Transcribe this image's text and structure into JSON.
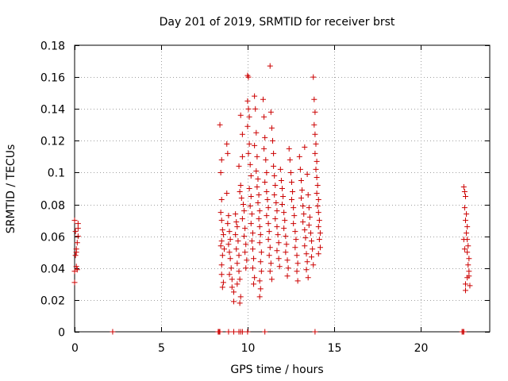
{
  "chart_data": {
    "type": "scatter",
    "title": "Day 201 of 2019, SRMTID for receiver brst",
    "xlabel": "GPS time / hours",
    "ylabel": "SRMTID / TECUs",
    "xlim": [
      0,
      24
    ],
    "ylim": [
      0,
      0.18
    ],
    "xticks": [
      0,
      5,
      10,
      15,
      20
    ],
    "xtick_labels": [
      "0",
      "5",
      "10",
      "15",
      "20"
    ],
    "yticks": [
      0,
      0.02,
      0.04,
      0.06,
      0.08,
      0.1,
      0.12,
      0.14,
      0.16,
      0.18
    ],
    "ytick_labels": [
      "0",
      "0.02",
      "0.04",
      "0.06",
      "0.08",
      "0.1",
      "0.12",
      "0.14",
      "0.16",
      "0.18"
    ],
    "grid": true,
    "marker": "+",
    "marker_color": "#cc0000",
    "series": [
      {
        "name": "brst",
        "points": [
          [
            0.0,
            0.07
          ],
          [
            0.05,
            0.063
          ],
          [
            0.1,
            0.052
          ],
          [
            0.1,
            0.041
          ],
          [
            0.15,
            0.039
          ],
          [
            0.0,
            0.031
          ],
          [
            0.2,
            0.068
          ],
          [
            0.2,
            0.06
          ],
          [
            0.15,
            0.056
          ],
          [
            0.05,
            0.048
          ],
          [
            0.2,
            0.065
          ],
          [
            0.0,
            0.038
          ],
          [
            0.1,
            0.05
          ],
          [
            2.2,
            0.0
          ],
          [
            8.3,
            0.0
          ],
          [
            8.35,
            0.0
          ],
          [
            8.4,
            0.0
          ],
          [
            8.9,
            0.0
          ],
          [
            9.2,
            0.0
          ],
          [
            9.5,
            0.0
          ],
          [
            9.6,
            0.0
          ],
          [
            9.7,
            0.0
          ],
          [
            10.0,
            0.0
          ],
          [
            11.0,
            0.0
          ],
          [
            13.9,
            0.0
          ],
          [
            22.4,
            0.0
          ],
          [
            22.45,
            0.0
          ],
          [
            22.5,
            0.0
          ],
          [
            8.4,
            0.13
          ],
          [
            8.45,
            0.1
          ],
          [
            8.5,
            0.108
          ],
          [
            8.5,
            0.083
          ],
          [
            8.45,
            0.075
          ],
          [
            8.5,
            0.07
          ],
          [
            8.55,
            0.064
          ],
          [
            8.5,
            0.057
          ],
          [
            8.45,
            0.054
          ],
          [
            8.55,
            0.048
          ],
          [
            8.5,
            0.042
          ],
          [
            8.5,
            0.036
          ],
          [
            8.6,
            0.031
          ],
          [
            8.55,
            0.028
          ],
          [
            8.6,
            0.061
          ],
          [
            8.65,
            0.052
          ],
          [
            8.8,
            0.118
          ],
          [
            8.85,
            0.112
          ],
          [
            8.8,
            0.087
          ],
          [
            8.9,
            0.073
          ],
          [
            8.85,
            0.068
          ],
          [
            8.95,
            0.063
          ],
          [
            9.0,
            0.058
          ],
          [
            8.9,
            0.055
          ],
          [
            8.95,
            0.05
          ],
          [
            9.0,
            0.046
          ],
          [
            9.05,
            0.04
          ],
          [
            8.95,
            0.036
          ],
          [
            9.1,
            0.033
          ],
          [
            9.1,
            0.028
          ],
          [
            9.2,
            0.025
          ],
          [
            9.2,
            0.019
          ],
          [
            9.3,
            0.074
          ],
          [
            9.35,
            0.069
          ],
          [
            9.4,
            0.066
          ],
          [
            9.3,
            0.061
          ],
          [
            9.45,
            0.057
          ],
          [
            9.35,
            0.052
          ],
          [
            9.5,
            0.048
          ],
          [
            9.4,
            0.043
          ],
          [
            9.5,
            0.038
          ],
          [
            9.55,
            0.033
          ],
          [
            9.4,
            0.03
          ],
          [
            9.6,
            0.022
          ],
          [
            9.55,
            0.018
          ],
          [
            9.5,
            0.104
          ],
          [
            9.6,
            0.092
          ],
          [
            9.55,
            0.088
          ],
          [
            9.65,
            0.084
          ],
          [
            9.6,
            0.136
          ],
          [
            9.7,
            0.124
          ],
          [
            9.7,
            0.11
          ],
          [
            9.75,
            0.08
          ],
          [
            9.8,
            0.076
          ],
          [
            9.7,
            0.071
          ],
          [
            9.85,
            0.065
          ],
          [
            9.8,
            0.06
          ],
          [
            9.9,
            0.055
          ],
          [
            9.85,
            0.05
          ],
          [
            9.95,
            0.045
          ],
          [
            9.9,
            0.04
          ],
          [
            10.0,
            0.161
          ],
          [
            10.05,
            0.16
          ],
          [
            10.0,
            0.145
          ],
          [
            10.05,
            0.14
          ],
          [
            10.1,
            0.135
          ],
          [
            10.0,
            0.129
          ],
          [
            10.1,
            0.118
          ],
          [
            10.05,
            0.112
          ],
          [
            10.15,
            0.105
          ],
          [
            10.2,
            0.098
          ],
          [
            10.1,
            0.09
          ],
          [
            10.2,
            0.085
          ],
          [
            10.15,
            0.079
          ],
          [
            10.25,
            0.074
          ],
          [
            10.2,
            0.068
          ],
          [
            10.3,
            0.062
          ],
          [
            10.25,
            0.057
          ],
          [
            10.3,
            0.052
          ],
          [
            10.35,
            0.046
          ],
          [
            10.3,
            0.04
          ],
          [
            10.4,
            0.034
          ],
          [
            10.35,
            0.03
          ],
          [
            10.4,
            0.148
          ],
          [
            10.45,
            0.14
          ],
          [
            10.5,
            0.125
          ],
          [
            10.4,
            0.117
          ],
          [
            10.55,
            0.11
          ],
          [
            10.5,
            0.101
          ],
          [
            10.6,
            0.096
          ],
          [
            10.55,
            0.091
          ],
          [
            10.65,
            0.086
          ],
          [
            10.6,
            0.081
          ],
          [
            10.7,
            0.076
          ],
          [
            10.65,
            0.071
          ],
          [
            10.7,
            0.066
          ],
          [
            10.75,
            0.061
          ],
          [
            10.7,
            0.056
          ],
          [
            10.8,
            0.05
          ],
          [
            10.75,
            0.044
          ],
          [
            10.8,
            0.038
          ],
          [
            10.7,
            0.032
          ],
          [
            10.75,
            0.027
          ],
          [
            10.7,
            0.022
          ],
          [
            10.9,
            0.146
          ],
          [
            10.95,
            0.135
          ],
          [
            11.0,
            0.122
          ],
          [
            10.95,
            0.115
          ],
          [
            11.05,
            0.108
          ],
          [
            11.1,
            0.1
          ],
          [
            11.0,
            0.094
          ],
          [
            11.1,
            0.088
          ],
          [
            11.15,
            0.083
          ],
          [
            11.2,
            0.078
          ],
          [
            11.1,
            0.073
          ],
          [
            11.2,
            0.068
          ],
          [
            11.25,
            0.063
          ],
          [
            11.2,
            0.058
          ],
          [
            11.3,
            0.053
          ],
          [
            11.25,
            0.048
          ],
          [
            11.35,
            0.043
          ],
          [
            11.3,
            0.038
          ],
          [
            11.4,
            0.033
          ],
          [
            11.3,
            0.167
          ],
          [
            11.35,
            0.138
          ],
          [
            11.4,
            0.128
          ],
          [
            11.45,
            0.12
          ],
          [
            11.5,
            0.112
          ],
          [
            11.5,
            0.104
          ],
          [
            11.55,
            0.098
          ],
          [
            11.6,
            0.092
          ],
          [
            11.55,
            0.086
          ],
          [
            11.65,
            0.081
          ],
          [
            11.7,
            0.076
          ],
          [
            11.6,
            0.071
          ],
          [
            11.7,
            0.066
          ],
          [
            11.75,
            0.061
          ],
          [
            11.8,
            0.056
          ],
          [
            11.7,
            0.051
          ],
          [
            11.8,
            0.046
          ],
          [
            11.85,
            0.041
          ],
          [
            11.9,
            0.102
          ],
          [
            11.95,
            0.095
          ],
          [
            12.0,
            0.09
          ],
          [
            12.05,
            0.085
          ],
          [
            12.0,
            0.08
          ],
          [
            12.1,
            0.075
          ],
          [
            12.15,
            0.07
          ],
          [
            12.1,
            0.065
          ],
          [
            12.2,
            0.06
          ],
          [
            12.25,
            0.055
          ],
          [
            12.2,
            0.05
          ],
          [
            12.3,
            0.045
          ],
          [
            12.35,
            0.04
          ],
          [
            12.3,
            0.035
          ],
          [
            12.4,
            0.115
          ],
          [
            12.45,
            0.108
          ],
          [
            12.5,
            0.1
          ],
          [
            12.55,
            0.094
          ],
          [
            12.6,
            0.088
          ],
          [
            12.55,
            0.083
          ],
          [
            12.65,
            0.078
          ],
          [
            12.7,
            0.073
          ],
          [
            12.65,
            0.068
          ],
          [
            12.75,
            0.063
          ],
          [
            12.8,
            0.058
          ],
          [
            12.75,
            0.053
          ],
          [
            12.85,
            0.048
          ],
          [
            12.9,
            0.043
          ],
          [
            12.85,
            0.038
          ],
          [
            12.9,
            0.032
          ],
          [
            13.0,
            0.11
          ],
          [
            13.05,
            0.102
          ],
          [
            13.1,
            0.095
          ],
          [
            13.15,
            0.089
          ],
          [
            13.1,
            0.084
          ],
          [
            13.2,
            0.079
          ],
          [
            13.25,
            0.074
          ],
          [
            13.2,
            0.069
          ],
          [
            13.3,
            0.064
          ],
          [
            13.35,
            0.059
          ],
          [
            13.3,
            0.054
          ],
          [
            13.4,
            0.049
          ],
          [
            13.45,
            0.044
          ],
          [
            13.4,
            0.039
          ],
          [
            13.5,
            0.034
          ],
          [
            13.3,
            0.116
          ],
          [
            13.45,
            0.099
          ],
          [
            13.5,
            0.086
          ],
          [
            13.55,
            0.078
          ],
          [
            13.6,
            0.072
          ],
          [
            13.55,
            0.067
          ],
          [
            13.65,
            0.062
          ],
          [
            13.7,
            0.057
          ],
          [
            13.75,
            0.052
          ],
          [
            13.7,
            0.047
          ],
          [
            13.8,
            0.042
          ],
          [
            13.8,
            0.16
          ],
          [
            13.85,
            0.146
          ],
          [
            13.9,
            0.138
          ],
          [
            13.85,
            0.13
          ],
          [
            13.9,
            0.124
          ],
          [
            13.95,
            0.118
          ],
          [
            13.9,
            0.112
          ],
          [
            14.0,
            0.107
          ],
          [
            13.95,
            0.102
          ],
          [
            14.0,
            0.097
          ],
          [
            14.05,
            0.092
          ],
          [
            14.0,
            0.087
          ],
          [
            14.1,
            0.083
          ],
          [
            14.05,
            0.079
          ],
          [
            14.1,
            0.075
          ],
          [
            14.15,
            0.07
          ],
          [
            14.1,
            0.066
          ],
          [
            14.2,
            0.062
          ],
          [
            14.15,
            0.058
          ],
          [
            14.2,
            0.053
          ],
          [
            14.1,
            0.049
          ],
          [
            22.5,
            0.091
          ],
          [
            22.55,
            0.088
          ],
          [
            22.6,
            0.085
          ],
          [
            22.55,
            0.078
          ],
          [
            22.65,
            0.074
          ],
          [
            22.6,
            0.07
          ],
          [
            22.7,
            0.066
          ],
          [
            22.65,
            0.062
          ],
          [
            22.7,
            0.058
          ],
          [
            22.75,
            0.054
          ],
          [
            22.7,
            0.05
          ],
          [
            22.8,
            0.046
          ],
          [
            22.75,
            0.042
          ],
          [
            22.8,
            0.038
          ],
          [
            22.7,
            0.034
          ],
          [
            22.6,
            0.03
          ],
          [
            22.6,
            0.026
          ],
          [
            22.85,
            0.029
          ],
          [
            22.8,
            0.035
          ],
          [
            22.5,
            0.058
          ],
          [
            22.55,
            0.052
          ]
        ]
      }
    ]
  }
}
